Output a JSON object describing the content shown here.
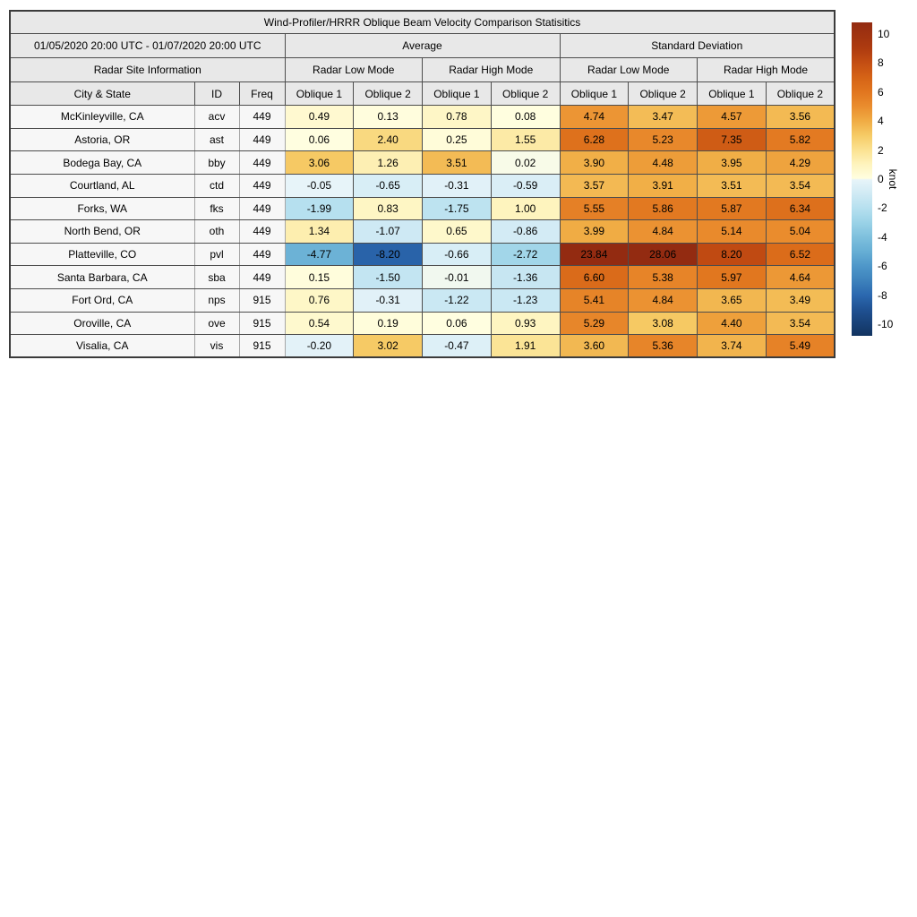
{
  "chart_data": {
    "type": "heatmap",
    "title": "Wind-Profiler/HRRR Oblique Beam Velocity Comparison Statisitics",
    "headers": {
      "date_range": "01/05/2020 20:00 UTC - 01/07/2020 20:00 UTC",
      "avg_group": "Average",
      "std_group": "Standard Deviation",
      "site_info": "Radar Site Information",
      "low_mode": "Radar Low Mode",
      "high_mode": "Radar High Mode",
      "city": "City & State",
      "id": "ID",
      "freq": "Freq",
      "oblique1": "Oblique 1",
      "oblique2": "Oblique 2"
    },
    "rows": [
      {
        "city": "McKinleyville, CA",
        "id": "acv",
        "freq": "449",
        "values": [
          0.49,
          0.13,
          0.78,
          0.08,
          4.74,
          3.47,
          4.57,
          3.56
        ]
      },
      {
        "city": "Astoria, OR",
        "id": "ast",
        "freq": "449",
        "values": [
          0.06,
          2.4,
          0.25,
          1.55,
          6.28,
          5.23,
          7.35,
          5.82
        ]
      },
      {
        "city": "Bodega Bay, CA",
        "id": "bby",
        "freq": "449",
        "values": [
          3.06,
          1.26,
          3.51,
          0.02,
          3.9,
          4.48,
          3.95,
          4.29
        ]
      },
      {
        "city": "Courtland, AL",
        "id": "ctd",
        "freq": "449",
        "values": [
          -0.05,
          -0.65,
          -0.31,
          -0.59,
          3.57,
          3.91,
          3.51,
          3.54
        ]
      },
      {
        "city": "Forks, WA",
        "id": "fks",
        "freq": "449",
        "values": [
          -1.99,
          0.83,
          -1.75,
          1.0,
          5.55,
          5.86,
          5.87,
          6.34
        ]
      },
      {
        "city": "North Bend, OR",
        "id": "oth",
        "freq": "449",
        "values": [
          1.34,
          -1.07,
          0.65,
          -0.86,
          3.99,
          4.84,
          5.14,
          5.04
        ]
      },
      {
        "city": "Platteville, CO",
        "id": "pvl",
        "freq": "449",
        "values": [
          -4.77,
          -8.2,
          -0.66,
          -2.72,
          23.84,
          28.06,
          8.2,
          6.52
        ]
      },
      {
        "city": "Santa Barbara, CA",
        "id": "sba",
        "freq": "449",
        "values": [
          0.15,
          -1.5,
          -0.01,
          -1.36,
          6.6,
          5.38,
          5.97,
          4.64
        ]
      },
      {
        "city": "Fort Ord, CA",
        "id": "nps",
        "freq": "915",
        "values": [
          0.76,
          -0.31,
          -1.22,
          -1.23,
          5.41,
          4.84,
          3.65,
          3.49
        ]
      },
      {
        "city": "Oroville, CA",
        "id": "ove",
        "freq": "915",
        "values": [
          0.54,
          0.19,
          0.06,
          0.93,
          5.29,
          3.08,
          4.4,
          3.54
        ]
      },
      {
        "city": "Visalia, CA",
        "id": "vis",
        "freq": "915",
        "values": [
          -0.2,
          3.02,
          -0.47,
          1.91,
          3.6,
          5.36,
          3.74,
          5.49
        ]
      }
    ],
    "colorbar": {
      "label": "knot",
      "ticks": [
        10,
        8,
        6,
        4,
        2,
        0,
        -2,
        -4,
        -6,
        -8,
        -10
      ],
      "vmin": -10.8,
      "vmax": 10.8,
      "stops": [
        [
          -10.8,
          "#123460"
        ],
        [
          -9.0,
          "#1F5192"
        ],
        [
          -8.0,
          "#2B68AF"
        ],
        [
          -7.0,
          "#3D82BC"
        ],
        [
          -6.0,
          "#4E97C9"
        ],
        [
          -5.0,
          "#66AED4"
        ],
        [
          -4.0,
          "#7EC0DD"
        ],
        [
          -3.0,
          "#9AD2E7"
        ],
        [
          -2.0,
          "#B6E0EF"
        ],
        [
          -1.0,
          "#D0EAF4"
        ],
        [
          -0.05,
          "#E7F4F9"
        ],
        [
          0.05,
          "#FFFEE0"
        ],
        [
          1.0,
          "#FEF4BE"
        ],
        [
          2.0,
          "#FBE292"
        ],
        [
          3.0,
          "#F6CB66"
        ],
        [
          4.0,
          "#F0AC44"
        ],
        [
          5.0,
          "#EA8D2E"
        ],
        [
          6.0,
          "#E1761F"
        ],
        [
          7.0,
          "#D56316"
        ],
        [
          8.0,
          "#C44E13"
        ],
        [
          9.0,
          "#AE3B10"
        ],
        [
          10.8,
          "#932B11"
        ]
      ]
    }
  }
}
